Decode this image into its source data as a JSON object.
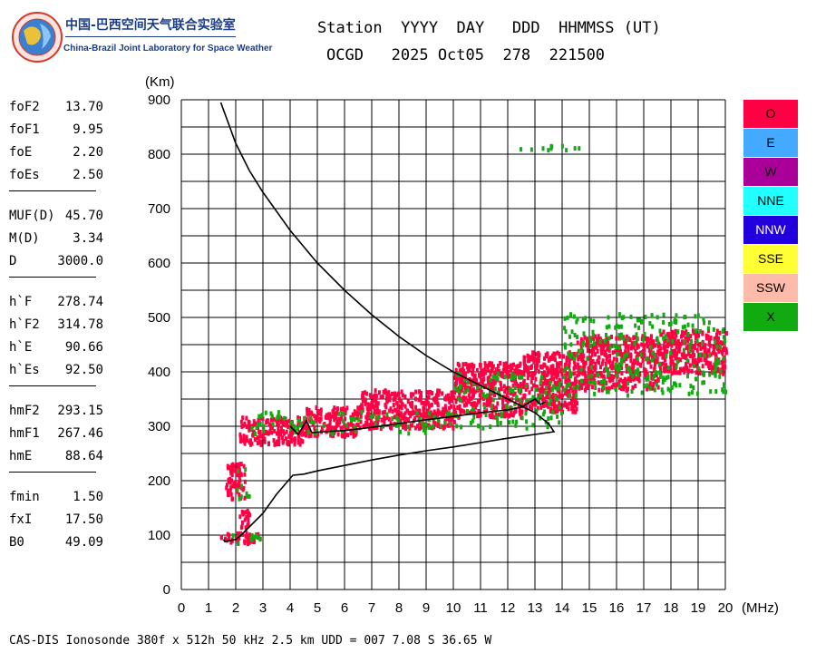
{
  "lab": {
    "name_cn": "中国-巴西空间天气联合实验室",
    "name_en": "China-Brazil Joint Laboratory for Space Weather"
  },
  "header": {
    "line1": "Station  YYYY  DAY   DDD  HHMMSS (UT)",
    "line2": "OCGD   2025 Oct05  278  221500"
  },
  "params": [
    {
      "group": [
        {
          "name": "foF2",
          "value": "13.70"
        },
        {
          "name": "foF1",
          "value": "9.95"
        },
        {
          "name": "foE",
          "value": "2.20"
        },
        {
          "name": "foEs",
          "value": "2.50"
        }
      ]
    },
    {
      "group": [
        {
          "name": "MUF(D)",
          "value": "45.70"
        },
        {
          "name": "M(D)",
          "value": "3.34"
        },
        {
          "name": "D",
          "value": "3000.0"
        }
      ]
    },
    {
      "group": [
        {
          "name": "h`F",
          "value": "278.74"
        },
        {
          "name": "h`F2",
          "value": "314.78"
        },
        {
          "name": "h`E",
          "value": "90.66"
        },
        {
          "name": "h`Es",
          "value": "92.50"
        }
      ]
    },
    {
      "group": [
        {
          "name": "hmF2",
          "value": "293.15"
        },
        {
          "name": "hmF1",
          "value": "267.46"
        },
        {
          "name": "hmE",
          "value": "88.64"
        }
      ]
    },
    {
      "group": [
        {
          "name": "fmin",
          "value": "1.50"
        },
        {
          "name": "fxI",
          "value": "17.50"
        },
        {
          "name": "B0",
          "value": "49.09"
        }
      ]
    }
  ],
  "legend": [
    {
      "label": "O",
      "color": "#ff0044"
    },
    {
      "label": "E",
      "color": "#44aaff"
    },
    {
      "label": "W",
      "color": "#aa0099"
    },
    {
      "label": "NNE",
      "color": "#22ffff"
    },
    {
      "label": "NNW",
      "color": "#2200dd"
    },
    {
      "label": "SSE",
      "color": "#ffff33"
    },
    {
      "label": "SSW",
      "color": "#ffbbaa"
    },
    {
      "label": "X",
      "color": "#11aa11"
    }
  ],
  "footer": "CAS-DIS Ionosonde 380f x 512h 50 kHz 2.5 km UDD = 007 7.08 S 36.65 W",
  "chart_data": {
    "type": "scatter",
    "title": "",
    "xlabel": "(MHz)",
    "ylabel": "(Km)",
    "xlim": [
      0,
      20
    ],
    "ylim": [
      0,
      900
    ],
    "x_ticks": [
      0,
      1,
      2,
      3,
      4,
      5,
      6,
      7,
      8,
      9,
      10,
      11,
      12,
      13,
      14,
      15,
      16,
      17,
      18,
      19,
      20
    ],
    "y_ticks": [
      0,
      100,
      200,
      300,
      400,
      500,
      600,
      700,
      800,
      900
    ],
    "grid": true,
    "series": [
      {
        "name": "O",
        "color": "#ff0044",
        "regions": [
          {
            "x": [
              1.4,
              2.9
            ],
            "y": [
              88,
              108
            ]
          },
          {
            "x": [
              1.6,
              2.3
            ],
            "y": [
              170,
              235
            ]
          },
          {
            "x": [
              2.1,
              2.5
            ],
            "y": [
              115,
              150
            ]
          },
          {
            "x": [
              2.1,
              4.5
            ],
            "y": [
              270,
              320
            ]
          },
          {
            "x": [
              4.5,
              6.5
            ],
            "y": [
              285,
              340
            ]
          },
          {
            "x": [
              6.5,
              10.0
            ],
            "y": [
              300,
              370
            ]
          },
          {
            "x": [
              10.0,
              12.5
            ],
            "y": [
              320,
              420
            ]
          },
          {
            "x": [
              12.5,
              14.5
            ],
            "y": [
              330,
              440
            ]
          },
          {
            "x": [
              14.5,
              17.5
            ],
            "y": [
              370,
              470
            ]
          },
          {
            "x": [
              17.5,
              20.0
            ],
            "y": [
              400,
              480
            ]
          }
        ]
      },
      {
        "name": "X",
        "color": "#11aa11",
        "regions": [
          {
            "x": [
              1.5,
              3.0
            ],
            "y": [
              88,
              110
            ]
          },
          {
            "x": [
              2.0,
              2.5
            ],
            "y": [
              170,
              230
            ]
          },
          {
            "x": [
              2.5,
              10.0
            ],
            "y": [
              290,
              330
            ]
          },
          {
            "x": [
              10.0,
              14.0
            ],
            "y": [
              300,
              400
            ]
          },
          {
            "x": [
              14.0,
              20.0
            ],
            "y": [
              360,
              510
            ]
          },
          {
            "x": [
              12.0,
              14.6
            ],
            "y": [
              808,
              822
            ]
          }
        ]
      }
    ],
    "profile": {
      "name": "",
      "f": [
        1.45,
        2.0,
        2.5,
        3.0,
        4.0,
        5.0,
        6.0,
        7.0,
        8.0,
        9.0,
        10.0,
        11.0,
        12.0,
        13.0,
        13.5,
        13.7,
        13.0,
        12.0,
        11.0,
        10.0,
        9.0,
        8.0,
        7.0,
        6.0,
        5.0,
        4.5,
        4.1,
        3.5,
        3.0,
        2.5,
        2.2,
        2.0,
        1.8,
        1.6,
        1.55
      ],
      "h": [
        895,
        820,
        770,
        730,
        660,
        600,
        550,
        505,
        465,
        430,
        400,
        375,
        350,
        325,
        305,
        290,
        285,
        278,
        270,
        262,
        255,
        247,
        238,
        228,
        218,
        212,
        210,
        175,
        140,
        115,
        100,
        92,
        90,
        88,
        92
      ]
    },
    "trace": {
      "name": "",
      "f": [
        4.0,
        4.3,
        4.6,
        4.8,
        5.2,
        6.0,
        7.0,
        8.0,
        9.0,
        10.0,
        11.0,
        12.0,
        12.5,
        13.0,
        13.2,
        13.4
      ],
      "h": [
        300,
        285,
        310,
        288,
        290,
        292,
        298,
        305,
        312,
        318,
        325,
        330,
        335,
        350,
        340,
        345
      ]
    }
  }
}
